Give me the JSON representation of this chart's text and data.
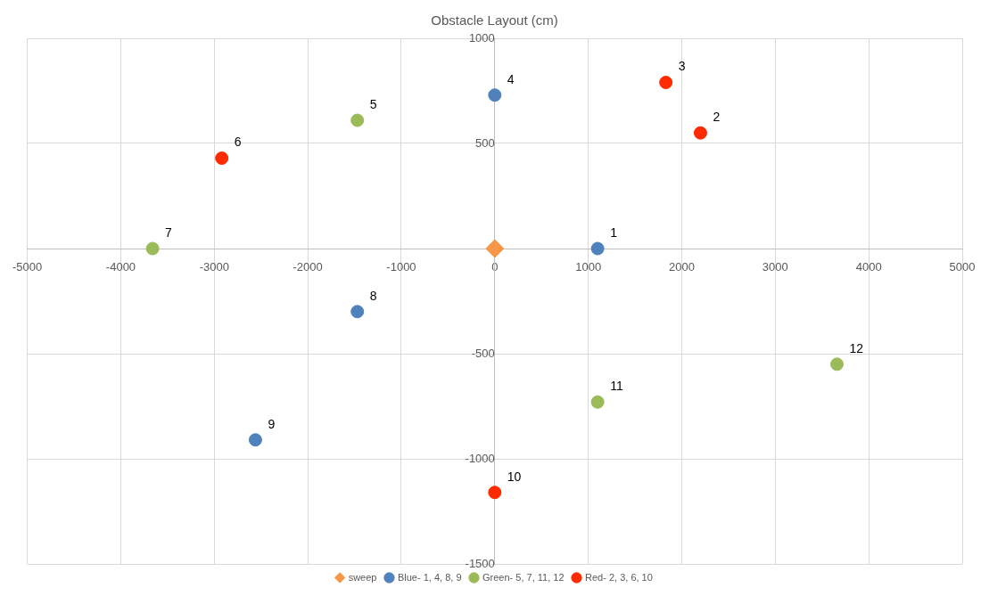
{
  "chart_data": {
    "type": "scatter",
    "title": "Obstacle Layout (cm)",
    "xlim": [
      -5000,
      5000
    ],
    "xticks": [
      -5000,
      -4000,
      -3000,
      -2000,
      -1000,
      0,
      1000,
      2000,
      3000,
      4000,
      5000
    ],
    "ylim": [
      -1500,
      1000
    ],
    "yticks": [
      -1500,
      -1000,
      -500,
      0,
      500,
      1000
    ],
    "grid": true,
    "legend": "bottom",
    "marker": "circle",
    "series": [
      {
        "name": "sweep",
        "color": "#f79646",
        "marker": "diamond",
        "x": [
          0
        ],
        "values": [
          0
        ]
      },
      {
        "name": "Blue- 1, 4, 8, 9",
        "color": "#4f81bd",
        "x": [
          1100,
          0,
          -1470,
          -2560
        ],
        "values": [
          0,
          730,
          -300,
          -910
        ]
      },
      {
        "name": "Green- 5, 7, 11, 12",
        "color": "#9bbb59",
        "x": [
          -1470,
          -3660,
          1100,
          3660
        ],
        "values": [
          610,
          0,
          -730,
          -550
        ]
      },
      {
        "name": "Red- 2, 3, 6, 10",
        "color": "#ff2a00",
        "x": [
          2200,
          1830,
          -2920,
          0
        ],
        "values": [
          550,
          790,
          430,
          -1160
        ]
      }
    ],
    "annotations": [
      {
        "text": "1",
        "x": 1100,
        "y": 0
      },
      {
        "text": "2",
        "x": 2200,
        "y": 550
      },
      {
        "text": "3",
        "x": 1830,
        "y": 790
      },
      {
        "text": "4",
        "x": 0,
        "y": 730
      },
      {
        "text": "5",
        "x": -1470,
        "y": 610
      },
      {
        "text": "6",
        "x": -2920,
        "y": 430
      },
      {
        "text": "7",
        "x": -3660,
        "y": 0
      },
      {
        "text": "8",
        "x": -1470,
        "y": -300
      },
      {
        "text": "9",
        "x": -2560,
        "y": -910
      },
      {
        "text": "10",
        "x": 0,
        "y": -1160
      },
      {
        "text": "11",
        "x": 1100,
        "y": -730
      },
      {
        "text": "12",
        "x": 3660,
        "y": -550
      }
    ]
  }
}
